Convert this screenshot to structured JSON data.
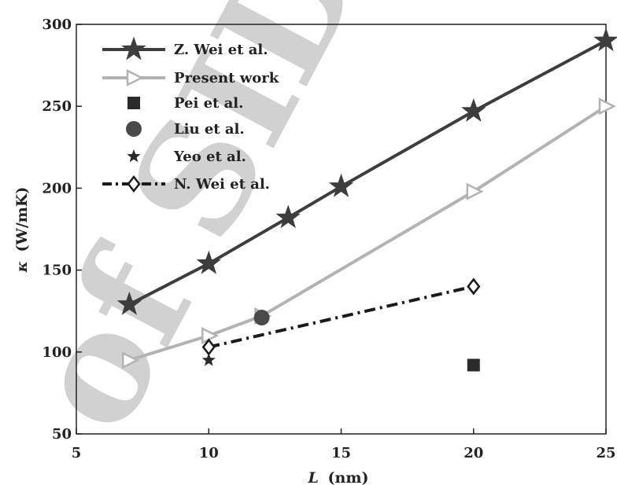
{
  "chart_data": {
    "type": "line",
    "xlabel_symbol": "L",
    "xlabel_unit": "(nm)",
    "ylabel_symbol": "κ",
    "ylabel_unit": "(W/mK)",
    "xlim": [
      5,
      25
    ],
    "ylim": [
      50,
      300
    ],
    "xticks": [
      5,
      10,
      15,
      20,
      25
    ],
    "yticks": [
      50,
      100,
      150,
      200,
      250,
      300
    ],
    "grid": false,
    "legend_position": "top-left",
    "series": [
      {
        "name": "Z. Wei et al.",
        "style": "solid-star",
        "color": "#3d3d3d",
        "x": [
          7,
          10,
          13,
          15,
          20,
          25
        ],
        "y": [
          129,
          154,
          182,
          201,
          247,
          290
        ]
      },
      {
        "name": "Present work",
        "style": "solid-open-triangle",
        "color": "#b3b3b3",
        "x": [
          7,
          10,
          12,
          20,
          25
        ],
        "y": [
          95,
          110,
          122,
          198,
          250
        ]
      },
      {
        "name": "Pei et al.",
        "style": "square",
        "color": "#2a2a2a",
        "x": [
          20
        ],
        "y": [
          92
        ]
      },
      {
        "name": "Liu et al.",
        "style": "circle",
        "color": "#4a4a4a",
        "x": [
          12
        ],
        "y": [
          121
        ]
      },
      {
        "name": "Yeo et al.",
        "style": "small-star",
        "color": "#2a2a2a",
        "x": [
          10
        ],
        "y": [
          95
        ]
      },
      {
        "name": "N. Wei et al.",
        "style": "dashdot-open-diamond",
        "color": "#1a1a1a",
        "x": [
          10,
          20
        ],
        "y": [
          103,
          140
        ]
      }
    ]
  },
  "watermark": {
    "text": "of SID",
    "color": "#cfcfcf"
  }
}
